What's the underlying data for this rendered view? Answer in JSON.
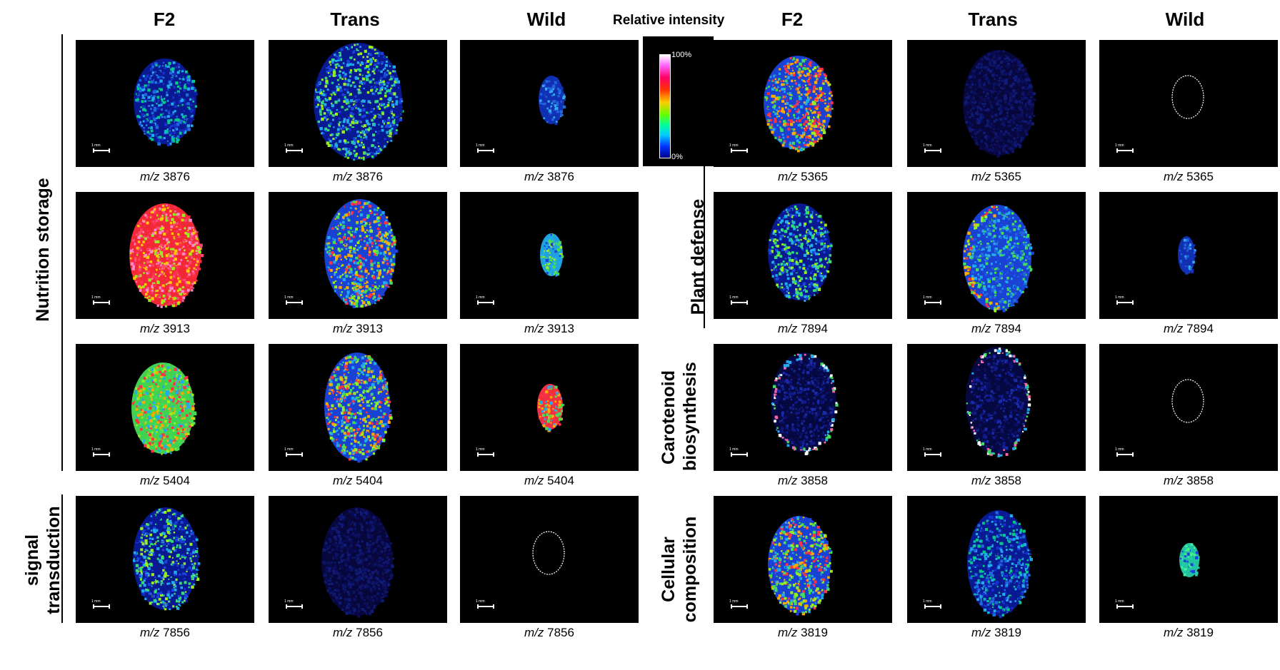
{
  "headers": {
    "left": [
      "F2",
      "Trans",
      "Wild"
    ],
    "relative_intensity": "Relative intensity",
    "right": [
      "F2",
      "Trans",
      "Wild"
    ]
  },
  "colorbar": {
    "max_label": "100%",
    "min_label": "0%"
  },
  "scale_label": "1 mm",
  "groups": {
    "nutrition_storage": "Nutrition storage",
    "signal_transduction": [
      "signal",
      "transduction"
    ],
    "plant_defense": "Plant defense",
    "carotenoid": [
      "Carotenoid",
      "biosynthesis"
    ],
    "cellular": [
      "Cellular",
      "composition"
    ]
  },
  "mz_prefix": "m/z",
  "left_rows": [
    {
      "mz": [
        "3876",
        "3876",
        "3876"
      ]
    },
    {
      "mz": [
        "3913",
        "3913",
        "3913"
      ]
    },
    {
      "mz": [
        "5404",
        "5404",
        "5404"
      ]
    },
    {
      "mz": [
        "7856",
        "7856",
        "7856"
      ]
    }
  ],
  "right_rows": [
    {
      "mz": [
        "5365",
        "5365",
        "5365"
      ]
    },
    {
      "mz": [
        "7894",
        "7894",
        "7894"
      ]
    },
    {
      "mz": [
        "3858",
        "3858",
        "3858"
      ]
    },
    {
      "mz": [
        "3819",
        "3819",
        "3819"
      ]
    }
  ]
}
